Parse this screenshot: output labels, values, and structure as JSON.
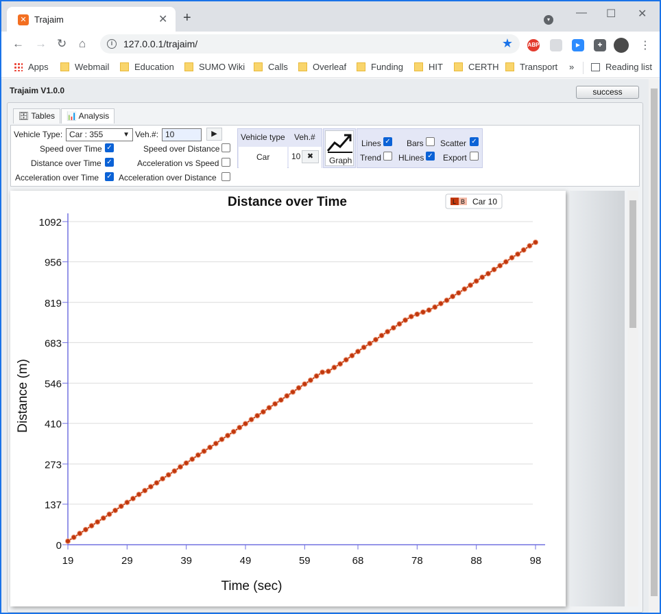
{
  "browser": {
    "tab_title": "Trajaim",
    "url": "127.0.0.1/trajaim/",
    "bookmarks": [
      "Apps",
      "Webmail",
      "Education",
      "SUMO Wiki",
      "Calls",
      "Overleaf",
      "Funding",
      "HIT",
      "CERTH",
      "Transport"
    ],
    "bookmarks_overflow": "»",
    "reading_list": "Reading list",
    "ext_abp": "ABP"
  },
  "app": {
    "title": "Trajaim V1.0.0",
    "status_button": "success",
    "tabs": [
      "Tables",
      "Analysis"
    ],
    "vehicle_type_label": "Vehicle Type:",
    "vehicle_type_value": "Car : 355",
    "veh_num_label": "Veh.#:",
    "veh_num_value": "10",
    "play_icon": "▶",
    "checks": [
      {
        "label": "Speed over Time",
        "checked": true
      },
      {
        "label": "Speed over Distance",
        "checked": false
      },
      {
        "label": "Distance over Time",
        "checked": true
      },
      {
        "label": "Acceleration vs Speed",
        "checked": false
      },
      {
        "label": "Acceleration over Time",
        "checked": true
      },
      {
        "label": "Acceleration over Distance",
        "checked": false
      }
    ],
    "veh_table": {
      "col1": "Vehicle type",
      "col2": "Veh.#",
      "type": "Car",
      "num": "10",
      "remove": "✖"
    },
    "graph_label": "Graph",
    "options": [
      {
        "label": "Lines",
        "checked": true
      },
      {
        "label": "Bars",
        "checked": false
      },
      {
        "label": "Scatter",
        "checked": true
      },
      {
        "label": "Trend",
        "checked": false
      },
      {
        "label": "HLines",
        "checked": true
      },
      {
        "label": "Export",
        "checked": false
      }
    ]
  },
  "chart_data": {
    "type": "line",
    "title": "Distance over Time",
    "xlabel": "Time (sec)",
    "ylabel": "Distance (m)",
    "legend": {
      "L": "L",
      "B": "B",
      "name": "Car 10"
    },
    "xticks": [
      "19",
      "29",
      "39",
      "49",
      "59",
      "68",
      "78",
      "88",
      "98"
    ],
    "yticks": [
      "0",
      "137",
      "273",
      "410",
      "546",
      "683",
      "819",
      "956",
      "1092"
    ],
    "xlim": [
      19,
      98
    ],
    "ylim": [
      0,
      1092
    ],
    "series": [
      {
        "name": "Car 10",
        "color": "#c1380e",
        "x": [
          19,
          20,
          21,
          22,
          23,
          24,
          25,
          26,
          27,
          28,
          29,
          30,
          31,
          32,
          33,
          34,
          35,
          36,
          37,
          38,
          39,
          40,
          41,
          42,
          43,
          44,
          45,
          46,
          47,
          48,
          49,
          50,
          51,
          52,
          53,
          54,
          55,
          56,
          57,
          58,
          59,
          60,
          61,
          62,
          63,
          64,
          65,
          66,
          67,
          68,
          69,
          70,
          71,
          72,
          73,
          74,
          75,
          76,
          77,
          78,
          79,
          80,
          81,
          82,
          83,
          84,
          85,
          86,
          87,
          88,
          89,
          90,
          91,
          92,
          93,
          94,
          95,
          96,
          97,
          98
        ],
        "y": [
          12,
          25,
          38,
          51,
          64,
          77,
          90,
          103,
          116,
          130,
          143,
          156,
          170,
          183,
          196,
          209,
          223,
          236,
          249,
          263,
          276,
          289,
          303,
          316,
          329,
          342,
          356,
          369,
          382,
          396,
          409,
          423,
          436,
          449,
          463,
          476,
          489,
          503,
          516,
          530,
          543,
          556,
          570,
          583,
          586,
          599,
          611,
          625,
          639,
          653,
          667,
          680,
          693,
          707,
          720,
          733,
          746,
          759,
          771,
          779,
          786,
          793,
          803,
          815,
          826,
          839,
          851,
          864,
          877,
          891,
          904,
          916,
          930,
          943,
          956,
          970,
          982,
          996,
          1010,
          1022
        ]
      }
    ]
  }
}
